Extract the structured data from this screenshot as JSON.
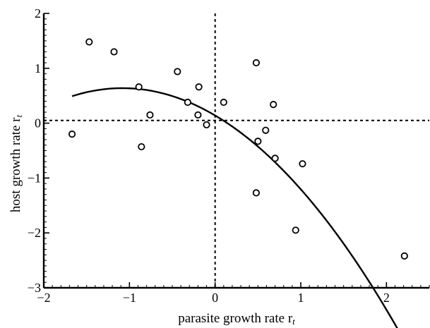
{
  "chart_data": {
    "type": "scatter",
    "xlabel": "parasite growth rate r",
    "xlabel_sub": "t",
    "ylabel": "host growth rate r",
    "ylabel_sub": "t",
    "xlim": [
      -2,
      2.5
    ],
    "ylim": [
      -3,
      2
    ],
    "x_ticks": [
      -2,
      -1,
      0,
      1,
      2
    ],
    "x_tick_labels": [
      "−2",
      "−1",
      "0",
      "1",
      "2"
    ],
    "y_ticks": [
      -3,
      -2,
      -1,
      0,
      1,
      2
    ],
    "y_tick_labels": [
      "−3",
      "−2",
      "−1",
      "0",
      "1",
      "2"
    ],
    "reference_lines": {
      "vertical_x": 0,
      "horizontal_y": 0.05
    },
    "points": [
      {
        "x": -1.67,
        "y": -0.2
      },
      {
        "x": -1.47,
        "y": 1.48
      },
      {
        "x": -1.18,
        "y": 1.3
      },
      {
        "x": -0.89,
        "y": 0.66
      },
      {
        "x": -0.86,
        "y": -0.43
      },
      {
        "x": -0.76,
        "y": 0.15
      },
      {
        "x": -0.44,
        "y": 0.94
      },
      {
        "x": -0.32,
        "y": 0.38
      },
      {
        "x": -0.2,
        "y": 0.15
      },
      {
        "x": -0.19,
        "y": 0.66
      },
      {
        "x": -0.1,
        "y": -0.03
      },
      {
        "x": 0.1,
        "y": 0.38
      },
      {
        "x": 0.48,
        "y": 1.1
      },
      {
        "x": 0.48,
        "y": -1.27
      },
      {
        "x": 0.5,
        "y": -0.33
      },
      {
        "x": 0.59,
        "y": -0.13
      },
      {
        "x": 0.68,
        "y": 0.34
      },
      {
        "x": 0.7,
        "y": -0.64
      },
      {
        "x": 0.94,
        "y": -1.95
      },
      {
        "x": 1.02,
        "y": -0.74
      },
      {
        "x": 2.21,
        "y": -2.42
      }
    ],
    "fit_curve": {
      "type": "quadratic",
      "x_range": [
        -1.67,
        2.2
      ],
      "coefficients": {
        "a": -0.425,
        "b": -0.92,
        "c": 0.14
      }
    },
    "grid": false
  }
}
